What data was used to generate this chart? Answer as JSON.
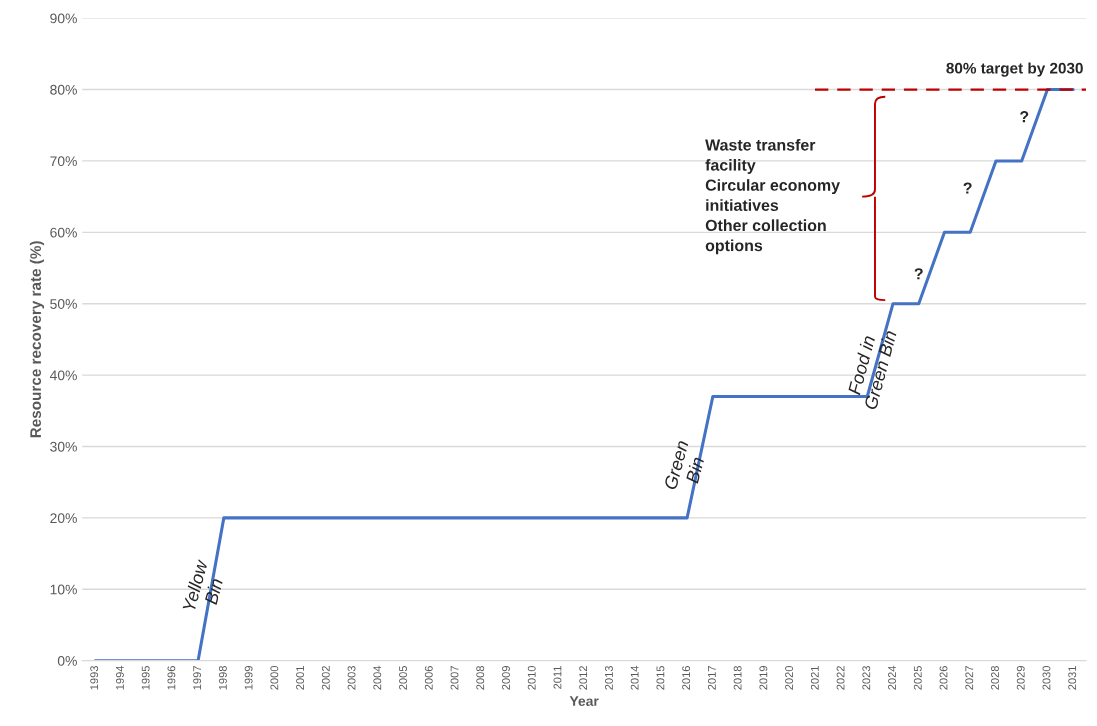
{
  "chart_data": {
    "type": "line",
    "xlabel": "Year",
    "ylabel": "Resource recovery rate (%)",
    "categories": [
      "1993",
      "1994",
      "1995",
      "1996",
      "1997",
      "1998",
      "1999",
      "2000",
      "2001",
      "2002",
      "2003",
      "2004",
      "2005",
      "2006",
      "2007",
      "2008",
      "2009",
      "2010",
      "2011",
      "2012",
      "2013",
      "2014",
      "2015",
      "2016",
      "2017",
      "2018",
      "2019",
      "2020",
      "2021",
      "2022",
      "2023",
      "2024",
      "2025",
      "2026",
      "2027",
      "2028",
      "2029",
      "2030",
      "2031"
    ],
    "series": [
      {
        "color": "#4472c4",
        "values": [
          0,
          0,
          0,
          0,
          0,
          20,
          20,
          20,
          20,
          20,
          20,
          20,
          20,
          20,
          20,
          20,
          20,
          20,
          20,
          20,
          20,
          20,
          20,
          20,
          37,
          37,
          37,
          37,
          37,
          37,
          37,
          50,
          50,
          60,
          60,
          70,
          70,
          80,
          80
        ]
      }
    ],
    "ylim": [
      0,
      90
    ],
    "yticks": [
      {
        "value": 0,
        "label": "0%"
      },
      {
        "value": 10,
        "label": "10%"
      },
      {
        "value": 20,
        "label": "20%"
      },
      {
        "value": 30,
        "label": "30%"
      },
      {
        "value": 40,
        "label": "40%"
      },
      {
        "value": 50,
        "label": "50%"
      },
      {
        "value": 60,
        "label": "60%"
      },
      {
        "value": 70,
        "label": "70%"
      },
      {
        "value": 80,
        "label": "80%"
      },
      {
        "value": 90,
        "label": "90%"
      }
    ],
    "grid": "y",
    "legend": false,
    "marker": "none",
    "line_style": "solid",
    "ref_lines": [
      {
        "axis": "y",
        "value": 80,
        "label": "80% target by 2030",
        "color": "#c00000",
        "line_style": "dashed"
      }
    ],
    "annotations": [
      "Yellow\nBin",
      "Green\nBin",
      "Food in\nGreen Bin",
      "?",
      "?",
      "?",
      "Waste transfer\nfacility\nCircular economy\ninitiatives\nOther collection\noptions"
    ]
  }
}
